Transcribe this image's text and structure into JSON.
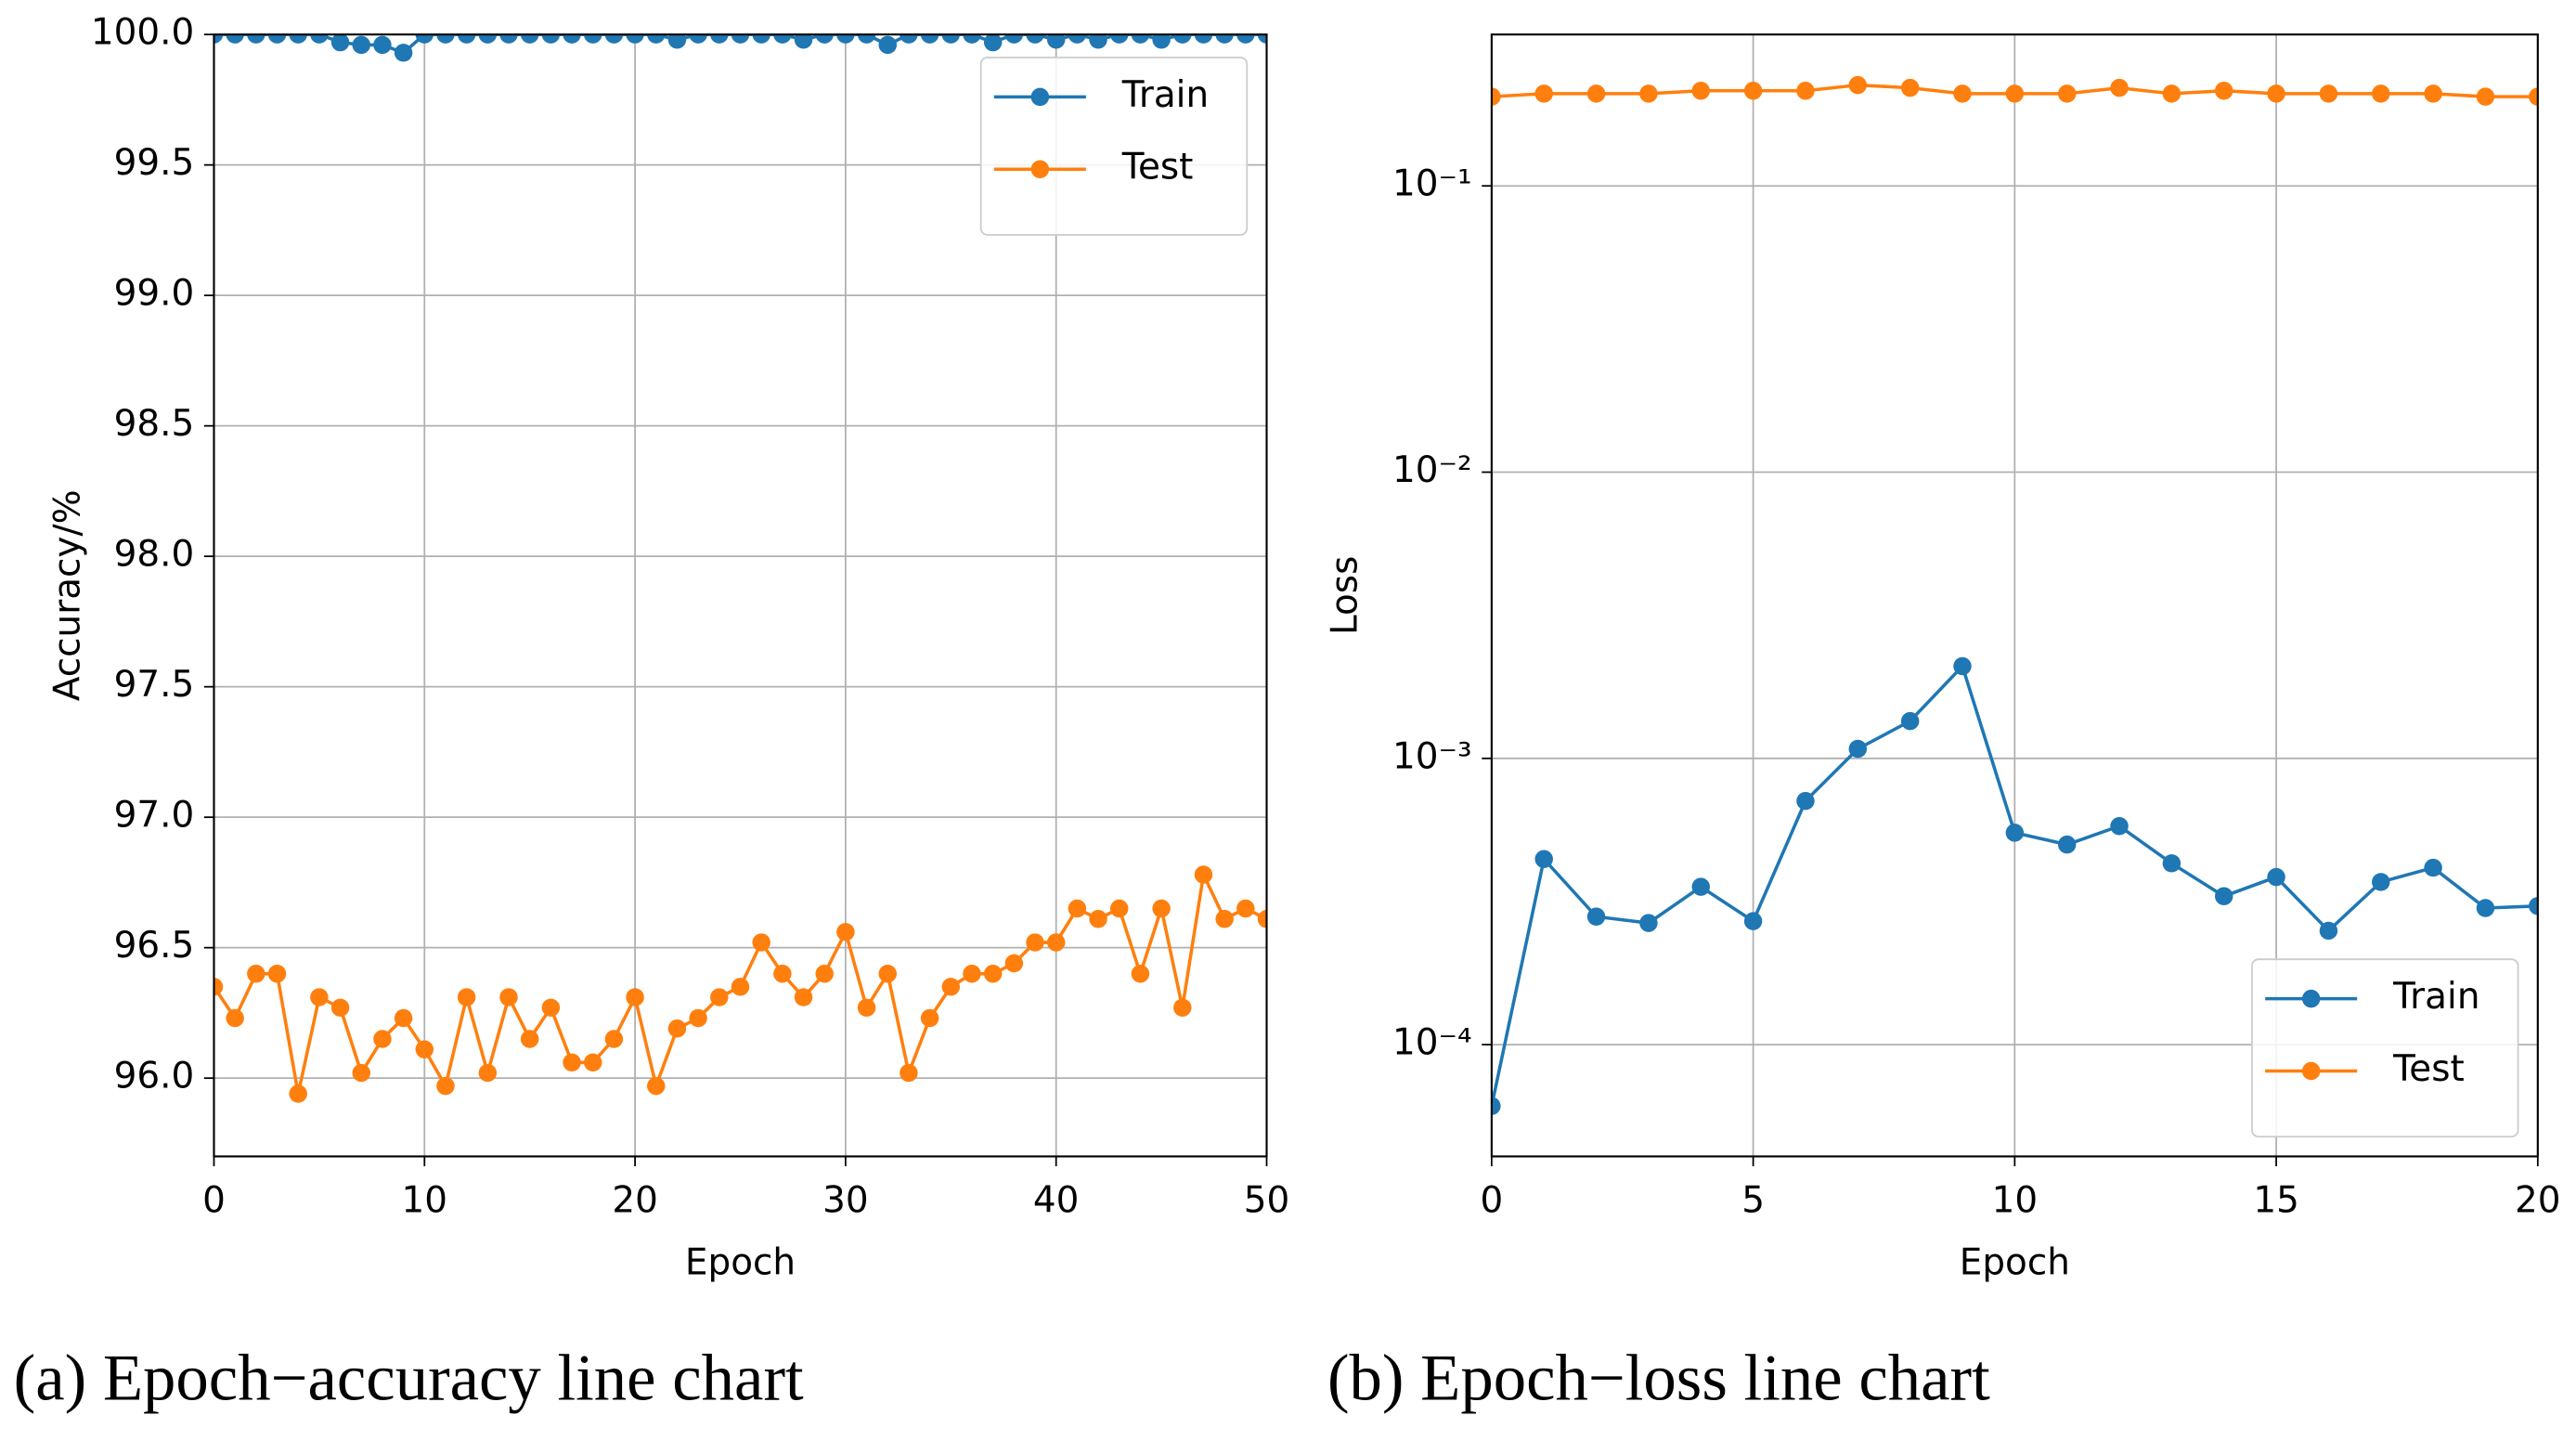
{
  "chart_data": [
    {
      "type": "line",
      "xlabel": "Epoch",
      "ylabel": "Accuracy/%",
      "caption": "(a) Epoch−accuracy line chart",
      "x": [
        0,
        1,
        2,
        3,
        4,
        5,
        6,
        7,
        8,
        9,
        10,
        11,
        12,
        13,
        14,
        15,
        16,
        17,
        18,
        19,
        20,
        21,
        22,
        23,
        24,
        25,
        26,
        27,
        28,
        29,
        30,
        31,
        32,
        33,
        34,
        35,
        36,
        37,
        38,
        39,
        40,
        41,
        42,
        43,
        44,
        45,
        46,
        47,
        48,
        49,
        50
      ],
      "series": [
        {
          "name": "Train",
          "color": "#1f77b4",
          "values": [
            100,
            100,
            100,
            100,
            100,
            100,
            99.97,
            99.96,
            99.96,
            99.93,
            100,
            100,
            100,
            100,
            100,
            100,
            100,
            100,
            100,
            100,
            100,
            100,
            99.98,
            100,
            100,
            100,
            100,
            100,
            99.98,
            100,
            100,
            100,
            99.96,
            100,
            100,
            100,
            100,
            99.97,
            100,
            100,
            99.98,
            100,
            99.98,
            100,
            100,
            99.98,
            100,
            100,
            100,
            100,
            100
          ]
        },
        {
          "name": "Test",
          "color": "#ff7f0e",
          "values": [
            96.35,
            96.23,
            96.4,
            96.4,
            95.94,
            96.31,
            96.27,
            96.02,
            96.15,
            96.23,
            96.11,
            95.97,
            96.31,
            96.02,
            96.31,
            96.15,
            96.27,
            96.06,
            96.06,
            96.15,
            96.31,
            95.97,
            96.19,
            96.23,
            96.31,
            96.35,
            96.52,
            96.4,
            96.31,
            96.4,
            96.56,
            96.27,
            96.4,
            96.02,
            96.23,
            96.35,
            96.4,
            96.4,
            96.44,
            96.52,
            96.52,
            96.65,
            96.61,
            96.65,
            96.4,
            96.65,
            96.27,
            96.78,
            96.61,
            96.65,
            96.61
          ]
        }
      ],
      "xlim": [
        0,
        50
      ],
      "xticks": [
        0,
        10,
        20,
        30,
        40,
        50
      ],
      "ylim": [
        95.7,
        100
      ],
      "yticks": [
        {
          "value": 96,
          "label": "96.0"
        },
        96.5,
        {
          "value": 97,
          "label": "97.0"
        },
        97.5,
        {
          "value": 98,
          "label": "98.0"
        },
        98.5,
        {
          "value": 99,
          "label": "99.0"
        },
        99.5,
        {
          "value": 100,
          "label": "100.0"
        }
      ],
      "yscale": "linear",
      "grid": true,
      "legend": "upper right"
    },
    {
      "type": "line",
      "xlabel": "Epoch",
      "ylabel": "Loss",
      "caption": "(b) Epoch−loss line chart",
      "x": [
        0,
        1,
        2,
        3,
        4,
        5,
        6,
        7,
        8,
        9,
        10,
        11,
        12,
        13,
        14,
        15,
        16,
        17,
        18,
        19,
        20
      ],
      "series": [
        {
          "name": "Train",
          "color": "#1f77b4",
          "values": [
            6.1e-05,
            0.000445,
            0.00028,
            0.000266,
            0.000356,
            0.00027,
            0.00071,
            0.00108,
            0.00135,
            0.0021,
            0.00055,
            0.0005,
            0.00058,
            0.00043,
            0.00033,
            0.000385,
            0.00025,
            0.00037,
            0.000415,
            0.0003,
            0.000305
          ]
        },
        {
          "name": "Test",
          "color": "#ff7f0e",
          "values": [
            0.205,
            0.21,
            0.21,
            0.21,
            0.215,
            0.215,
            0.215,
            0.225,
            0.22,
            0.21,
            0.21,
            0.21,
            0.22,
            0.21,
            0.215,
            0.21,
            0.21,
            0.21,
            0.21,
            0.205,
            0.205
          ]
        }
      ],
      "xlim": [
        0,
        20
      ],
      "xticks": [
        0,
        5,
        10,
        15,
        20
      ],
      "ylim": [
        4.07e-05,
        0.338
      ],
      "yticks": [
        {
          "value": 0.0001,
          "label": "10⁻⁴"
        },
        {
          "value": 0.001,
          "label": "10⁻³"
        },
        {
          "value": 0.01,
          "label": "10⁻²"
        },
        {
          "value": 0.1,
          "label": "10⁻¹"
        }
      ],
      "yscale": "log",
      "grid": true,
      "legend": "lower right"
    }
  ]
}
